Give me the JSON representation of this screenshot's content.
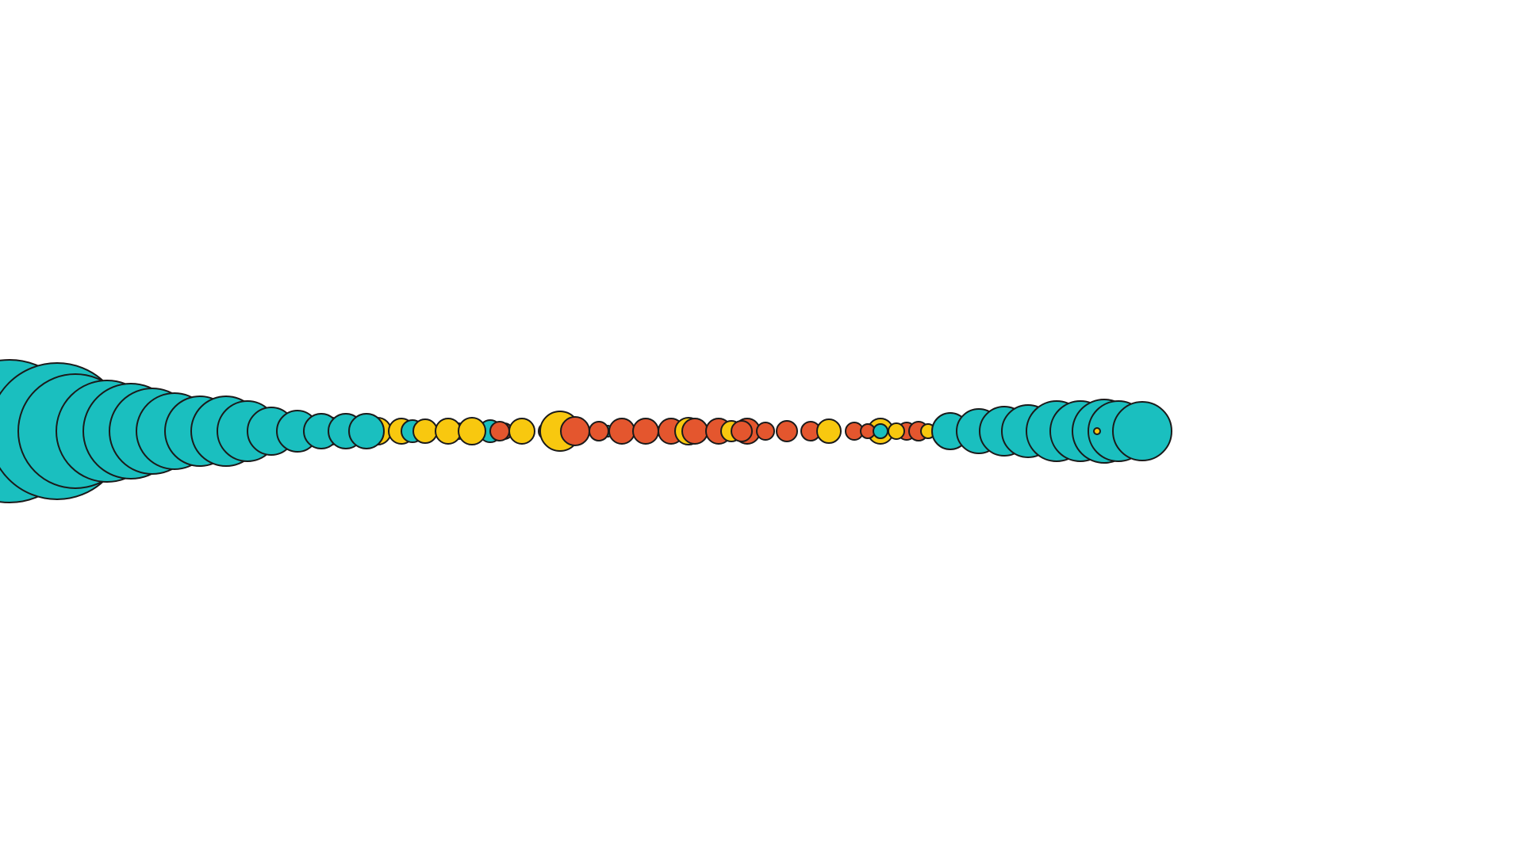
{
  "background": "#ffffff",
  "palette": {
    "teal": "#1abfbf",
    "yellow": "#f8c80f",
    "orange": "#e4562e",
    "outline": "#1a1a1a"
  },
  "circle_sequence": [
    "teal",
    "teal",
    "teal",
    "teal",
    "teal",
    "teal",
    "teal",
    "teal",
    "teal",
    "teal",
    "yellow",
    "teal",
    "yellow",
    "teal",
    "yellow",
    "teal",
    "yellow",
    "teal",
    "orange",
    "yellow",
    "teal",
    "yellow",
    "orange",
    "teal",
    "yellow",
    "orange",
    "yellow",
    "orange",
    "teal",
    "yellow",
    "orange",
    "orange",
    "yellow",
    "orange",
    "orange",
    "orange",
    "yellow",
    "orange",
    "teal",
    "orange",
    "orange",
    "orange",
    "orange",
    "yellow",
    "orange",
    "orange",
    "orange",
    "yellow",
    "orange",
    "orange",
    "orange",
    "orange",
    "yellow",
    "orange",
    "yellow",
    "orange",
    "teal",
    "orange",
    "yellow",
    "orange",
    "yellow",
    "teal",
    "teal",
    "teal",
    "teal",
    "teal",
    "teal",
    "teal",
    "teal",
    "teal",
    "yellow"
  ]
}
